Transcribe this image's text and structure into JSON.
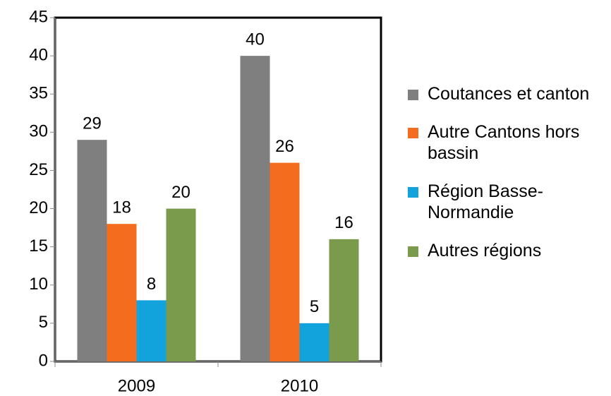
{
  "chart_data": {
    "type": "bar",
    "categories": [
      "2009",
      "2010"
    ],
    "series": [
      {
        "name": "Coutances et canton",
        "color": "#7f7f7f",
        "values": [
          29,
          40
        ]
      },
      {
        "name": "Autre Cantons hors bassin",
        "color": "#f46c1e",
        "values": [
          18,
          26
        ]
      },
      {
        "name": "Région Basse-Normandie",
        "color": "#12a2dc",
        "values": [
          8,
          5
        ]
      },
      {
        "name": "Autres régions",
        "color": "#7a9a4c",
        "values": [
          20,
          16
        ]
      }
    ],
    "ylim": [
      0,
      45
    ],
    "yticks": [
      0,
      5,
      10,
      15,
      20,
      25,
      30,
      35,
      40,
      45
    ],
    "grid": false,
    "legend": "right"
  }
}
